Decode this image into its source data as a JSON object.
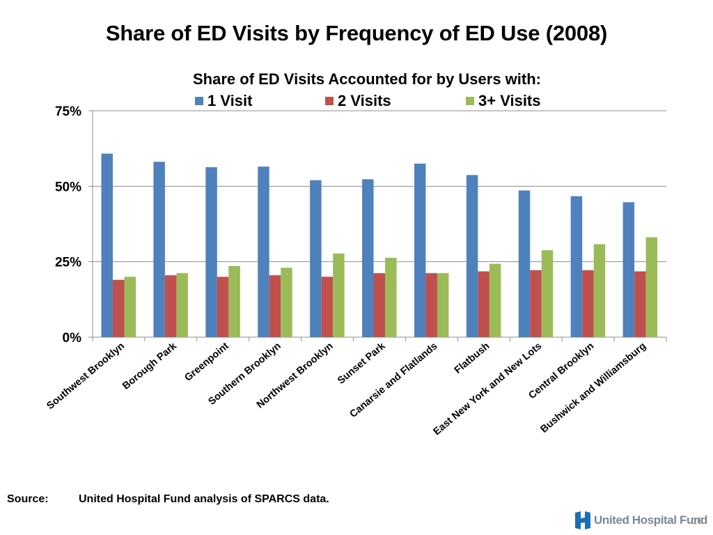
{
  "slide": {
    "title": "Share of ED Visits by Frequency of ED Use (2008)",
    "source_label": "Source:",
    "source_text": "United Hospital Fund analysis of SPARCS data.",
    "logo_text": "United Hospital Fund",
    "page_number": "16",
    "logo_color": "#1a6fb5"
  },
  "chart_data": {
    "type": "bar",
    "title": "Share of ED Visits Accounted for by Users with:",
    "xlabel": "",
    "ylabel": "",
    "ylim": [
      0,
      75
    ],
    "yticks": [
      0,
      25,
      50,
      75
    ],
    "ytick_labels": [
      "0%",
      "25%",
      "50%",
      "75%"
    ],
    "grid": true,
    "legend_position": "top",
    "categories": [
      "Southwest Brooklyn",
      "Borough Park",
      "Greenpoint",
      "Southern Brooklyn",
      "Northwest Brooklyn",
      "Sunset Park",
      "Canarsie and Flatlands",
      "Flatbush",
      "East New York and New Lots",
      "Central Brooklyn",
      "Bushwick and Williamsburg"
    ],
    "series": [
      {
        "name": "1 Visit",
        "color": "#4f81bd",
        "values": [
          60.8,
          58.1,
          56.3,
          56.5,
          52.0,
          52.3,
          57.5,
          53.7,
          48.6,
          46.7,
          44.7
        ]
      },
      {
        "name": "2 Visits",
        "color": "#c0504d",
        "values": [
          19.0,
          20.5,
          20.0,
          20.5,
          20.0,
          21.2,
          21.2,
          21.8,
          22.2,
          22.2,
          21.8
        ]
      },
      {
        "name": "3+ Visits",
        "color": "#9bbb59",
        "values": [
          20.0,
          21.2,
          23.6,
          23.0,
          27.7,
          26.3,
          21.2,
          24.3,
          28.8,
          30.8,
          33.1
        ]
      }
    ]
  }
}
